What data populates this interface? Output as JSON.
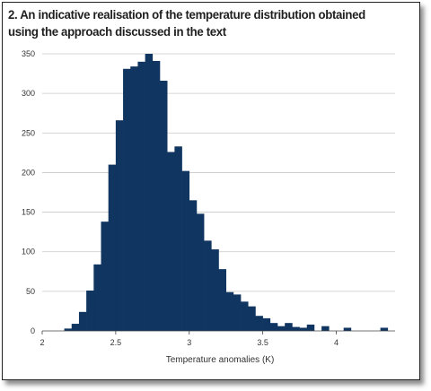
{
  "chart_data": {
    "type": "bar",
    "title": "2. An indicative realisation of the temperature distribution obtained using the approach discussed in the text",
    "xlabel": "Temperature anomalies (K)",
    "ylabel": "",
    "xlim": [
      2,
      4.4
    ],
    "ylim": [
      0,
      350
    ],
    "xticks": [
      "2",
      "2.5",
      "3",
      "3.5",
      "4"
    ],
    "yticks": [
      "0",
      "50",
      "100",
      "150",
      "200",
      "250",
      "300",
      "350"
    ],
    "grid": "horizontal",
    "bar_color": "#0f3560",
    "bin_width": 0.05,
    "bins_left_edge": [
      2.15,
      2.2,
      2.25,
      2.3,
      2.35,
      2.4,
      2.45,
      2.5,
      2.55,
      2.6,
      2.65,
      2.7,
      2.75,
      2.8,
      2.85,
      2.9,
      2.95,
      3.0,
      3.05,
      3.1,
      3.15,
      3.2,
      3.25,
      3.3,
      3.35,
      3.4,
      3.45,
      3.5,
      3.55,
      3.6,
      3.65,
      3.7,
      3.75,
      3.8,
      3.9,
      4.05,
      4.3
    ],
    "values": [
      3,
      9,
      24,
      51,
      84,
      138,
      210,
      266,
      331,
      334,
      340,
      350,
      341,
      316,
      226,
      233,
      202,
      165,
      148,
      114,
      103,
      78,
      49,
      46,
      37,
      31,
      19,
      16,
      10,
      6,
      10,
      5,
      4,
      8,
      6,
      4,
      4
    ]
  }
}
